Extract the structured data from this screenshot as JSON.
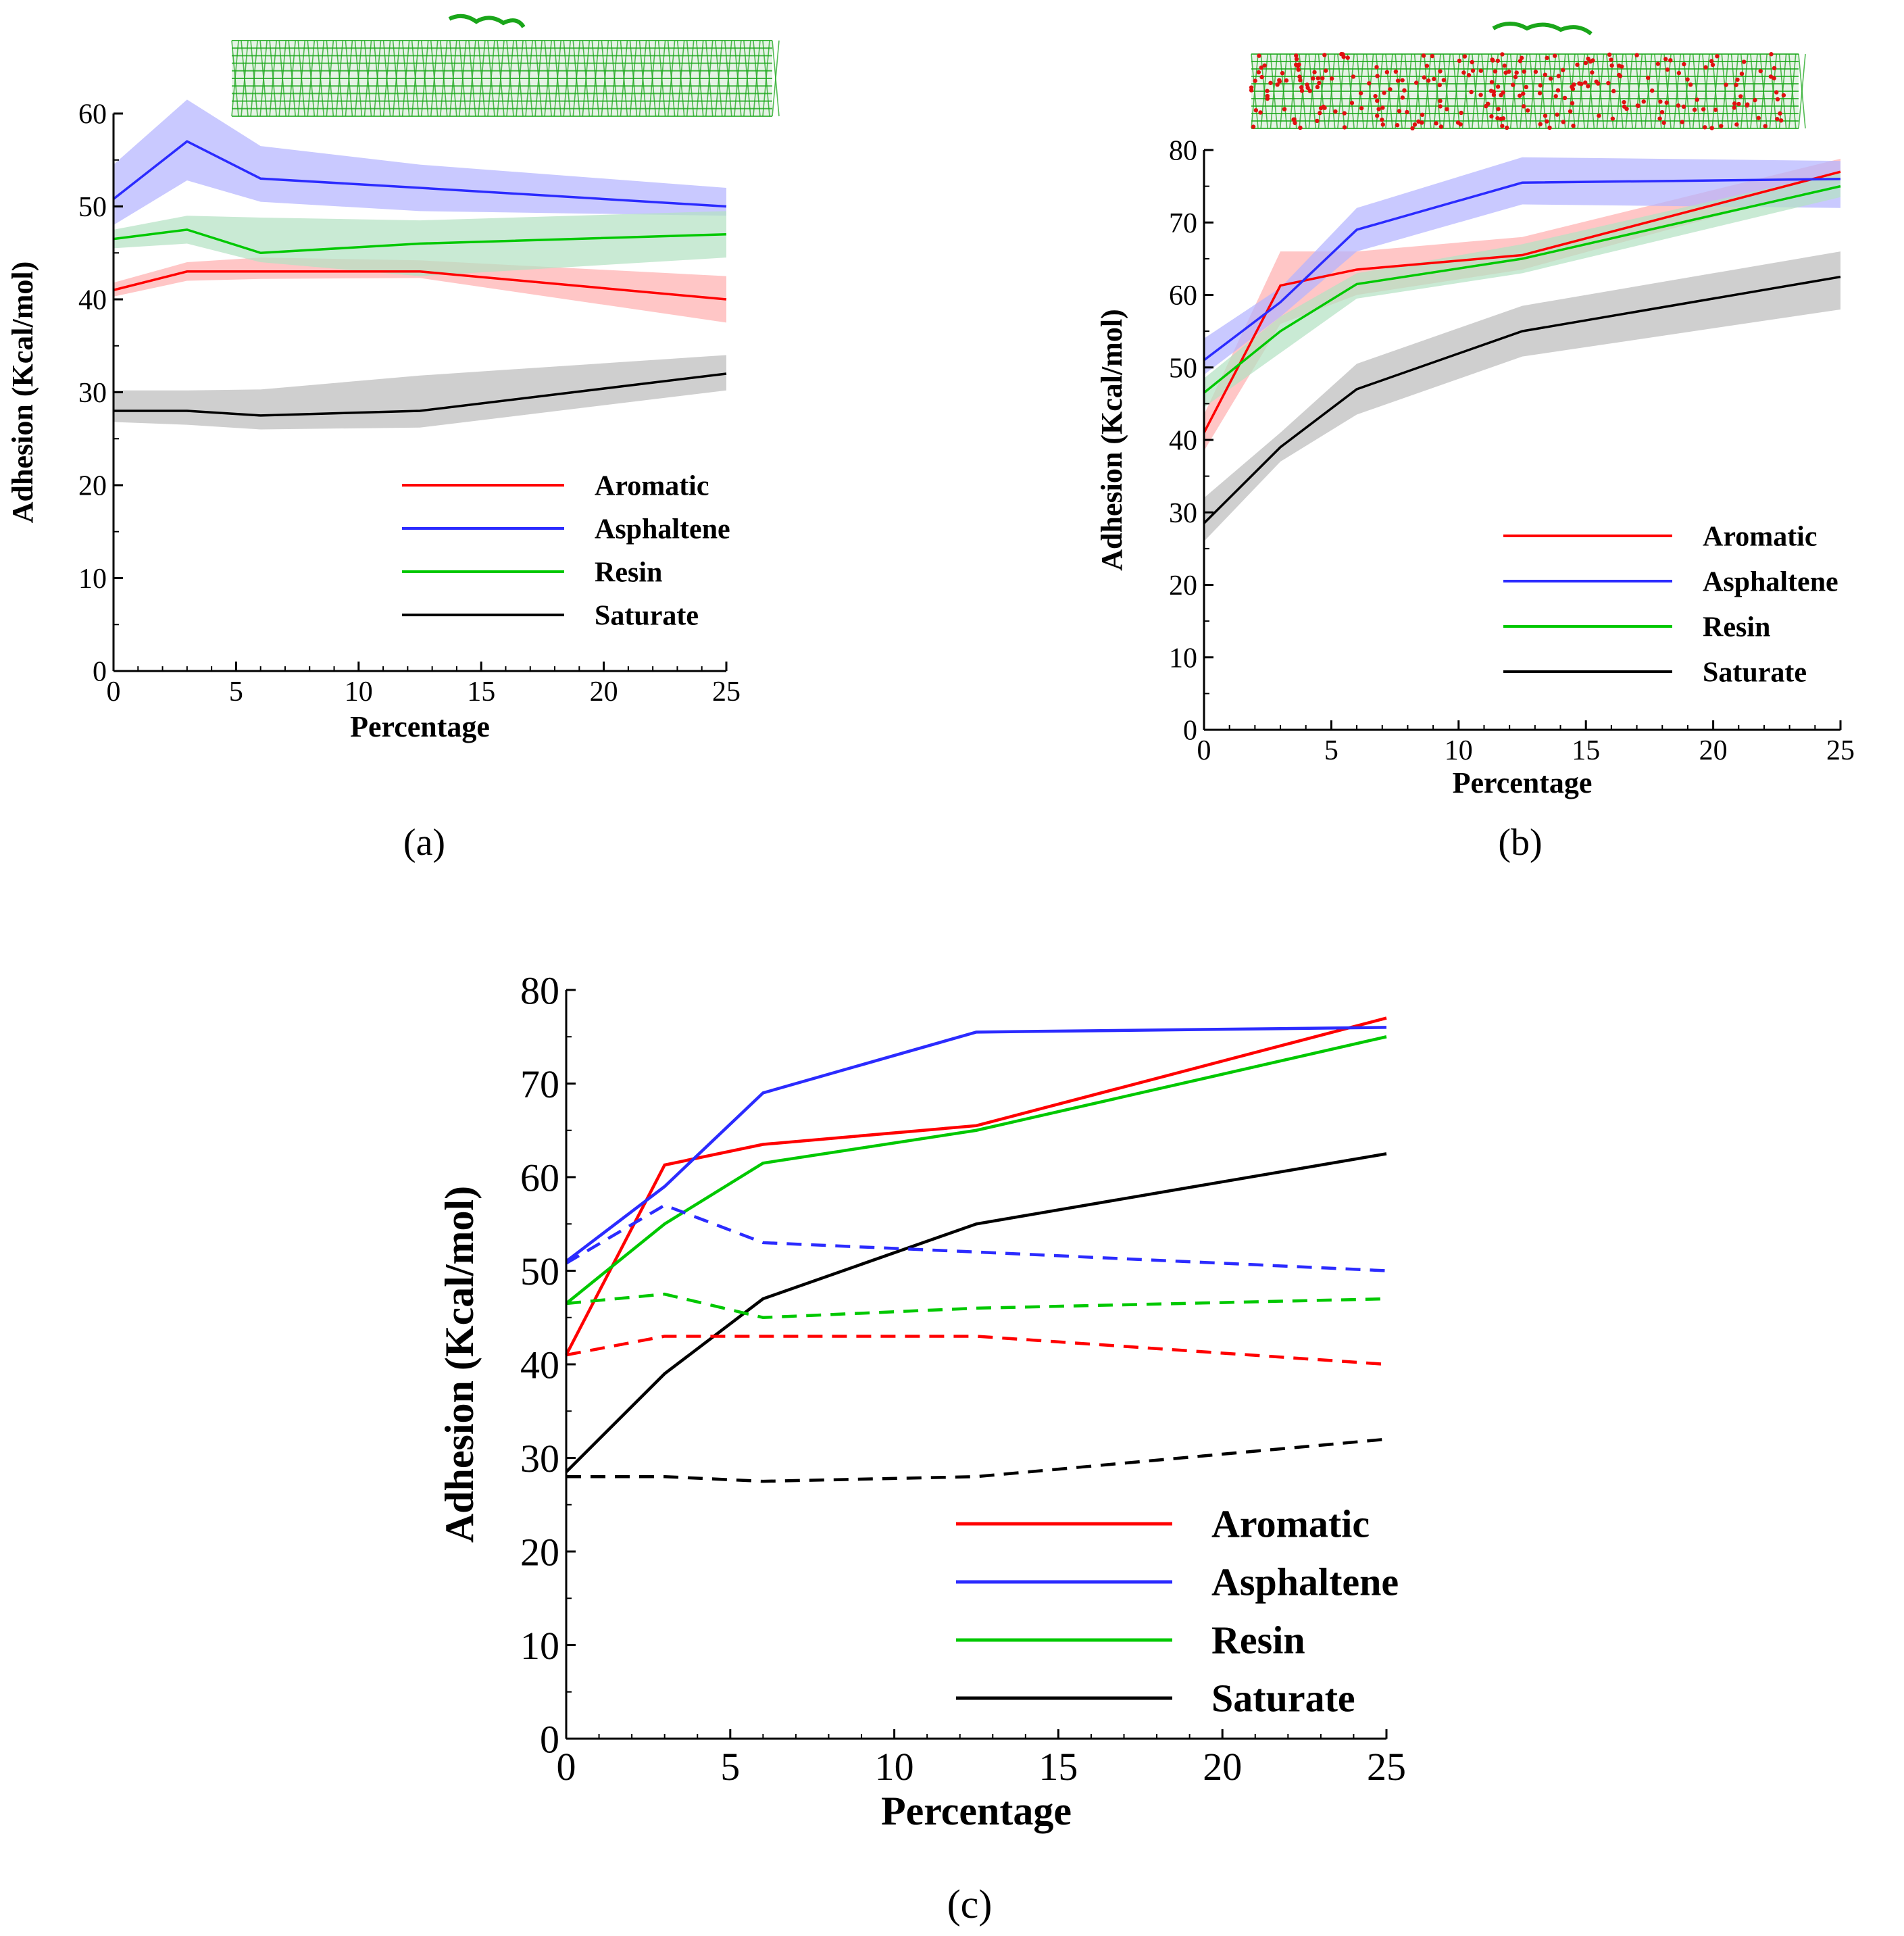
{
  "colors": {
    "aromatic": "#ff0000",
    "asphaltene": "#2b2bff",
    "resin": "#00c800",
    "saturate": "#000000",
    "band_aromatic": "#ffb0b0",
    "band_asphaltene": "#b4b4ff",
    "band_resin": "#b4e2c4",
    "band_saturate": "#bdbdbd",
    "molecule_carbon": "#1aa61a",
    "molecule_oxygen": "#e01010"
  },
  "panel_labels": {
    "a": "(a)",
    "b": "(b)",
    "c": "(c)"
  },
  "molecule_icons": {
    "a": "nanotube-molecule",
    "b": "oxidized-nanotube-molecule"
  },
  "chart_data": [
    {
      "id": "a",
      "type": "line",
      "xlabel": "Percentage",
      "ylabel": "Adhesion (Kcal/mol)",
      "xlim": [
        0,
        25
      ],
      "ylim": [
        0,
        60
      ],
      "xticks": [
        "0",
        "5",
        "10",
        "15",
        "20",
        "25"
      ],
      "yticks": [
        "0",
        "10",
        "20",
        "30",
        "40",
        "50",
        "60"
      ],
      "x": [
        0,
        3,
        6,
        12.5,
        25
      ],
      "series": [
        {
          "name": "Aromatic",
          "key": "aromatic",
          "values": [
            41,
            43,
            43,
            43,
            40
          ],
          "band": [
            [
              40.3,
              41.8
            ],
            [
              42,
              44
            ],
            [
              42.2,
              44.5
            ],
            [
              42.3,
              44.2
            ],
            [
              37.5,
              42.5
            ]
          ]
        },
        {
          "name": "Asphaltene",
          "key": "asphaltene",
          "values": [
            50.8,
            57,
            53,
            52,
            50
          ],
          "band": [
            [
              48,
              54.5
            ],
            [
              52.8,
              61.5
            ],
            [
              50.5,
              56.5
            ],
            [
              49.5,
              54.5
            ],
            [
              49,
              52
            ]
          ]
        },
        {
          "name": "Resin",
          "key": "resin",
          "values": [
            46.5,
            47.5,
            45,
            46,
            47
          ],
          "band": [
            [
              45.5,
              47.5
            ],
            [
              46,
              49
            ],
            [
              44,
              48.8
            ],
            [
              42.5,
              48.5
            ],
            [
              44.5,
              49.5
            ]
          ]
        },
        {
          "name": "Saturate",
          "key": "saturate",
          "values": [
            28,
            28,
            27.5,
            28,
            32
          ],
          "band": [
            [
              26.8,
              30.2
            ],
            [
              26.5,
              30.2
            ],
            [
              26,
              30.3
            ],
            [
              26.2,
              31.8
            ],
            [
              30.2,
              34
            ]
          ]
        }
      ],
      "legend": [
        "Aromatic",
        "Asphaltene",
        "Resin",
        "Saturate"
      ]
    },
    {
      "id": "b",
      "type": "line",
      "xlabel": "Percentage",
      "ylabel": "Adhesion (Kcal/mol)",
      "xlim": [
        0,
        25
      ],
      "ylim": [
        0,
        80
      ],
      "xticks": [
        "0",
        "5",
        "10",
        "15",
        "20",
        "25"
      ],
      "yticks": [
        "0",
        "10",
        "20",
        "30",
        "40",
        "50",
        "60",
        "70",
        "80"
      ],
      "x": [
        0,
        3,
        6,
        12.5,
        25
      ],
      "series": [
        {
          "name": "Aromatic",
          "key": "aromatic",
          "values": [
            41,
            61.3,
            63.5,
            65.5,
            77
          ],
          "band": [
            [
              38.5,
              43.5
            ],
            [
              56,
              66
            ],
            [
              60,
              66
            ],
            [
              63.5,
              68
            ],
            [
              75.5,
              78.8
            ]
          ]
        },
        {
          "name": "Asphaltene",
          "key": "asphaltene",
          "values": [
            51,
            59,
            69,
            75.5,
            76
          ],
          "band": [
            [
              49,
              54
            ],
            [
              57,
              61
            ],
            [
              66,
              72
            ],
            [
              72.5,
              79
            ],
            [
              72,
              78.5
            ]
          ]
        },
        {
          "name": "Resin",
          "key": "resin",
          "values": [
            46.5,
            55,
            61.5,
            65,
            75
          ],
          "band": [
            [
              44.5,
              48.5
            ],
            [
              52,
              57
            ],
            [
              59.5,
              63
            ],
            [
              63,
              67
            ],
            [
              73.5,
              77
            ]
          ]
        },
        {
          "name": "Saturate",
          "key": "saturate",
          "values": [
            28.5,
            39,
            47,
            55,
            62.5
          ],
          "band": [
            [
              26,
              32
            ],
            [
              37,
              41
            ],
            [
              43.5,
              50.5
            ],
            [
              51.5,
              58.5
            ],
            [
              58,
              66
            ]
          ]
        }
      ],
      "legend": [
        "Aromatic",
        "Asphaltene",
        "Resin",
        "Saturate"
      ]
    },
    {
      "id": "c",
      "type": "line",
      "xlabel": "Percentage",
      "ylabel": "Adhesion (Kcal/mol)",
      "xlim": [
        0,
        25
      ],
      "ylim": [
        0,
        80
      ],
      "xticks": [
        "0",
        "5",
        "10",
        "15",
        "20",
        "25"
      ],
      "yticks": [
        "0",
        "10",
        "20",
        "30",
        "40",
        "50",
        "60",
        "70",
        "80"
      ],
      "x": [
        0,
        3,
        6,
        12.5,
        25
      ],
      "series": [
        {
          "name": "Aromatic",
          "key": "aromatic",
          "style": "solid",
          "values": [
            41,
            61.3,
            63.5,
            65.5,
            77
          ]
        },
        {
          "name": "Asphaltene",
          "key": "asphaltene",
          "style": "solid",
          "values": [
            51,
            59,
            69,
            75.5,
            76
          ]
        },
        {
          "name": "Resin",
          "key": "resin",
          "style": "solid",
          "values": [
            46.5,
            55,
            61.5,
            65,
            75
          ]
        },
        {
          "name": "Saturate",
          "key": "saturate",
          "style": "solid",
          "values": [
            28.5,
            39,
            47,
            55,
            62.5
          ]
        },
        {
          "name": "Aromatic",
          "key": "aromatic",
          "style": "dashed",
          "values": [
            41,
            43,
            43,
            43,
            40
          ]
        },
        {
          "name": "Asphaltene",
          "key": "asphaltene",
          "style": "dashed",
          "values": [
            50.8,
            57,
            53,
            52,
            50
          ]
        },
        {
          "name": "Resin",
          "key": "resin",
          "style": "dashed",
          "values": [
            46.5,
            47.5,
            45,
            46,
            47
          ]
        },
        {
          "name": "Saturate",
          "key": "saturate",
          "style": "dashed",
          "values": [
            28,
            28,
            27.5,
            28,
            32
          ]
        }
      ],
      "legend": [
        "Aromatic",
        "Asphaltene",
        "Resin",
        "Saturate"
      ]
    }
  ]
}
